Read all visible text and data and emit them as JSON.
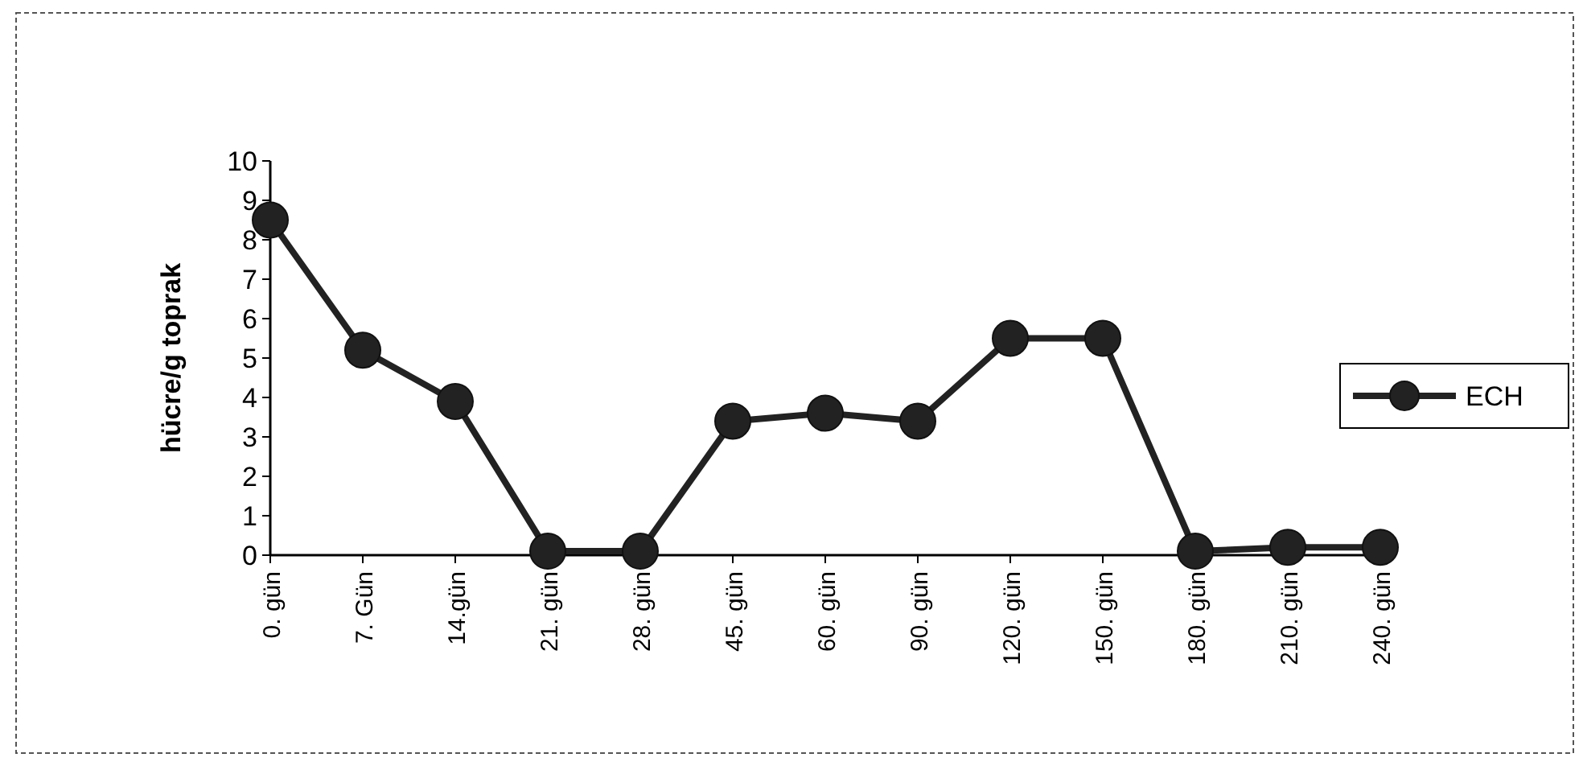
{
  "chart_data": {
    "type": "line",
    "ylabel": "hücre/g toprak",
    "categories": [
      "0. gün",
      "7. Gün",
      "14.gün",
      "21. gün",
      "28. gün",
      "45. gün",
      "60. gün",
      "90. gün",
      "120. gün",
      "150. gün",
      "180. gün",
      "210. gün",
      "240. gün"
    ],
    "series": [
      {
        "name": "ECH",
        "color": "#222222",
        "values": [
          8.5,
          5.2,
          3.9,
          0.1,
          0.1,
          3.4,
          3.6,
          3.4,
          5.5,
          5.5,
          0.1,
          0.2,
          0.2
        ]
      }
    ],
    "ylim": [
      0,
      10
    ],
    "yticks": [
      0,
      1,
      2,
      3,
      4,
      5,
      6,
      7,
      8,
      9,
      10
    ],
    "grid": false,
    "legend": "right",
    "marker": "circle",
    "line_style": "solid"
  }
}
